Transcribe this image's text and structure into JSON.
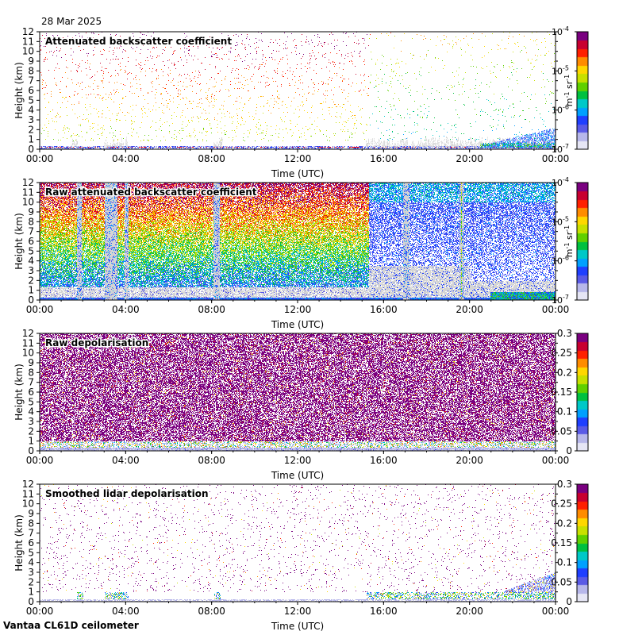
{
  "header": {
    "date": "28 Mar 2025"
  },
  "footer": {
    "instrument": "Vantaa CL61D ceilometer"
  },
  "colormap_colors": [
    "#e6e6f5",
    "#b7b7ea",
    "#5a5ae6",
    "#1f3fff",
    "#00a0ff",
    "#00c8c8",
    "#00c040",
    "#60d000",
    "#c8e000",
    "#ffd700",
    "#ff8c00",
    "#ff2000",
    "#c80030",
    "#7a0080"
  ],
  "shared_axes": {
    "xlabel": "Time (UTC)",
    "ylabel": "Height (km)",
    "x_ticks": [
      "00:00",
      "04:00",
      "08:00",
      "12:00",
      "16:00",
      "20:00",
      "00:00"
    ],
    "y_ticks": [
      "0",
      "1",
      "2",
      "3",
      "4",
      "5",
      "6",
      "7",
      "8",
      "9",
      "10",
      "11",
      "12"
    ]
  },
  "chart_data": [
    {
      "type": "heatmap",
      "title": "Attenuated backscatter coefficient",
      "xlabel": "Time (UTC)",
      "ylabel": "Height (km)",
      "xlim": [
        0,
        24
      ],
      "ylim": [
        0,
        12
      ],
      "colorbar": {
        "scale": "log",
        "range": [
          1e-07,
          0.0001
        ],
        "unit_label": "m-1 sr-1",
        "ticks": [
          {
            "base": "10",
            "exp": "-4"
          },
          {
            "base": "10",
            "exp": "-5"
          },
          {
            "base": "10",
            "exp": "-6"
          },
          {
            "base": "10",
            "exp": "-7"
          }
        ]
      },
      "field": "sparse_signal"
    },
    {
      "type": "heatmap",
      "title": "Raw attenuated backscatter coefficient",
      "xlabel": "Time (UTC)",
      "ylabel": "Height (km)",
      "xlim": [
        0,
        24
      ],
      "ylim": [
        0,
        12
      ],
      "colorbar": {
        "scale": "log",
        "range": [
          1e-07,
          0.0001
        ],
        "unit_label": "m-1 sr-1",
        "ticks": [
          {
            "base": "10",
            "exp": "-4"
          },
          {
            "base": "10",
            "exp": "-5"
          },
          {
            "base": "10",
            "exp": "-6"
          },
          {
            "base": "10",
            "exp": "-7"
          }
        ]
      },
      "field": "noisy_gradient"
    },
    {
      "type": "heatmap",
      "title": "Raw depolarisation",
      "xlabel": "Time (UTC)",
      "ylabel": "Height (km)",
      "xlim": [
        0,
        24
      ],
      "ylim": [
        0,
        12
      ],
      "colorbar": {
        "scale": "linear",
        "range": [
          0,
          0.3
        ],
        "ticks": [
          "0.3",
          "0.25",
          "0.2",
          "0.15",
          "0.1",
          "0.05",
          "0"
        ]
      },
      "field": "dense_noise"
    },
    {
      "type": "heatmap",
      "title": "Smoothed lidar depolarisation",
      "xlabel": "Time (UTC)",
      "ylabel": "Height (km)",
      "xlim": [
        0,
        24
      ],
      "ylim": [
        0,
        12
      ],
      "colorbar": {
        "scale": "linear",
        "range": [
          0,
          0.3
        ],
        "ticks": [
          "0.3",
          "0.25",
          "0.2",
          "0.15",
          "0.1",
          "0.05",
          "0"
        ]
      },
      "field": "sparse_depol"
    }
  ]
}
